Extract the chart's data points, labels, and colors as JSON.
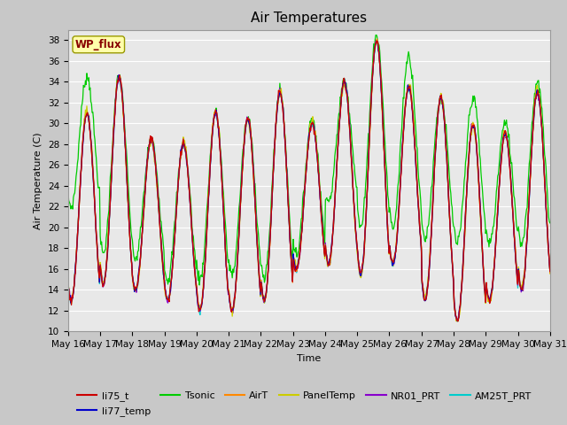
{
  "title": "Air Temperatures",
  "xlabel": "Time",
  "ylabel": "Air Temperature (C)",
  "ylim": [
    10,
    39
  ],
  "yticks": [
    10,
    12,
    14,
    16,
    18,
    20,
    22,
    24,
    26,
    28,
    30,
    32,
    34,
    36,
    38
  ],
  "x_tick_labels": [
    "May 16",
    "May 17",
    "May 18",
    "May 19",
    "May 20",
    "May 21",
    "May 22",
    "May 23",
    "May 24",
    "May 25",
    "May 26",
    "May 27",
    "May 28",
    "May 29",
    "May 30",
    "May 31"
  ],
  "series_colors": {
    "li75_t": "#cc0000",
    "li77_temp": "#0000cc",
    "Tsonic": "#00cc00",
    "AirT": "#ff8800",
    "PanelTemp": "#cccc00",
    "NR01_PRT": "#8800cc",
    "AM25T_PRT": "#00cccc"
  },
  "wp_flux_box_color": "#ffffaa",
  "wp_flux_text_color": "#880000",
  "plot_bg_color": "#e8e8e8",
  "grid_color": "#ffffff",
  "title_fontsize": 11,
  "axis_label_fontsize": 8,
  "tick_fontsize": 7.5
}
